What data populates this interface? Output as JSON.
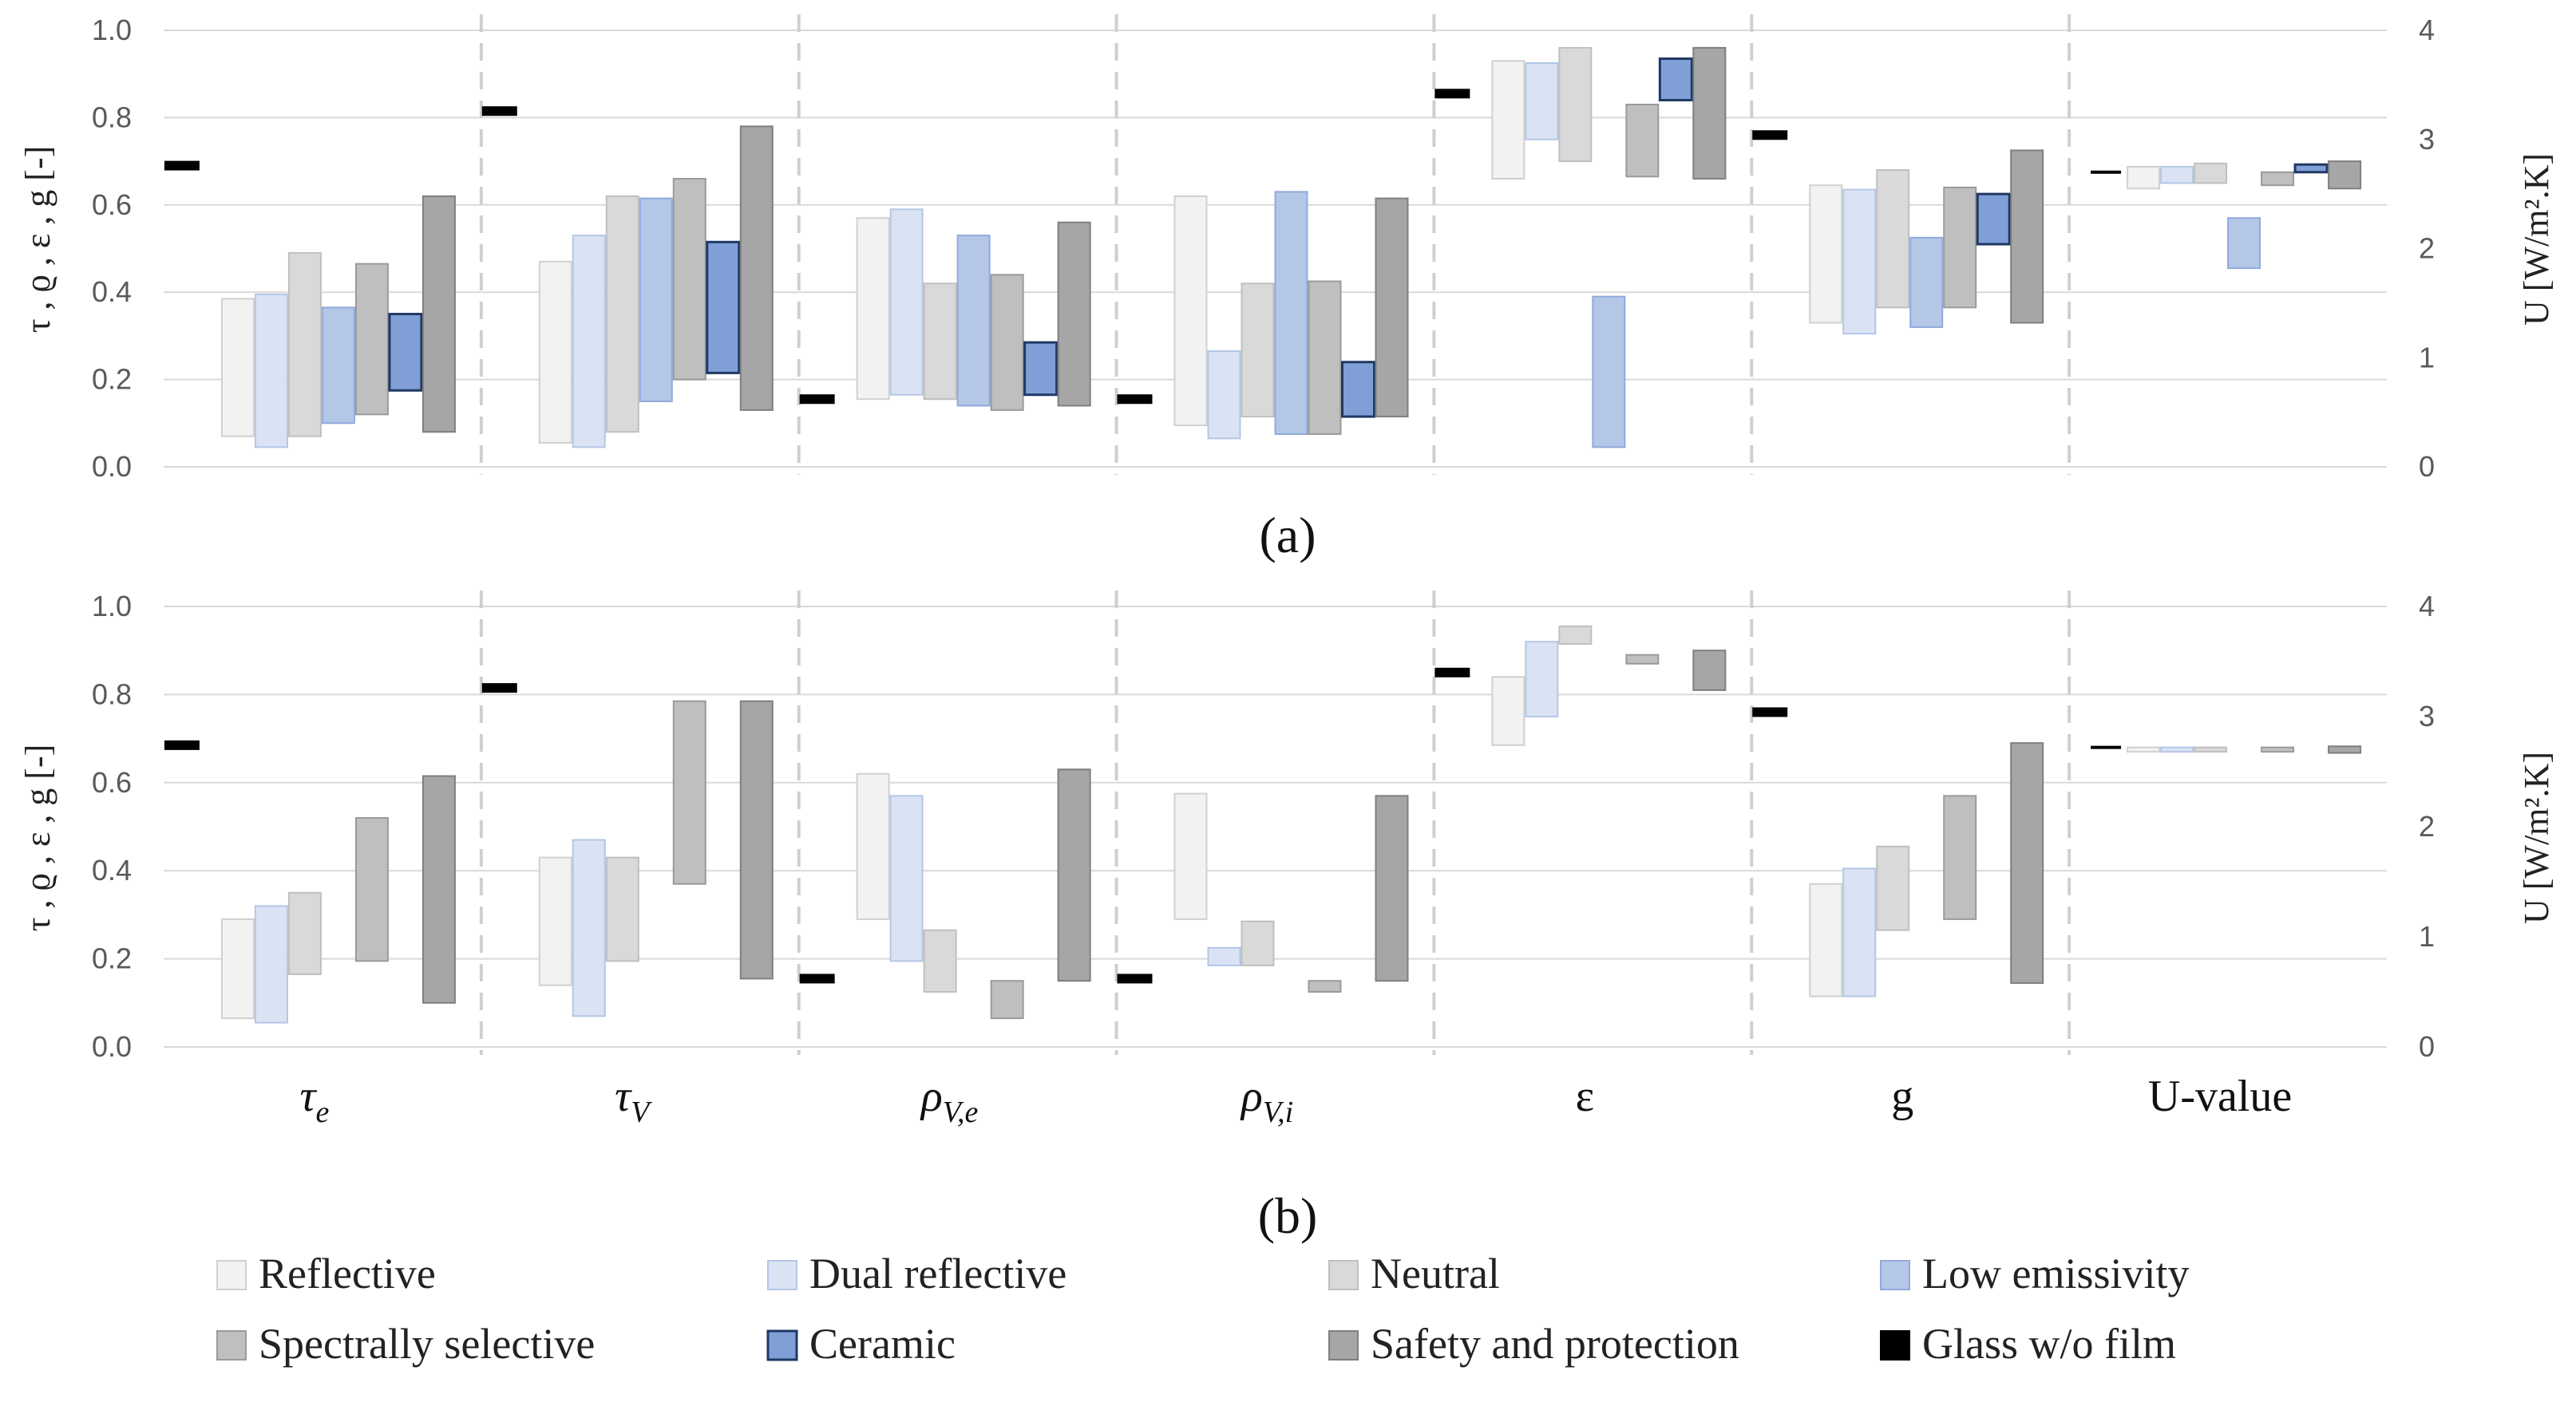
{
  "chart_data": {
    "type": "bar",
    "subtype": "floating-range",
    "y_left_label": "τ , ϱ , ε , g [-]",
    "y_right_label": "U [W/m².K]",
    "y_left_range": [
      0,
      1
    ],
    "y_right_range": [
      0,
      4
    ],
    "y_left_ticks": [
      "0.0",
      "0.2",
      "0.4",
      "0.6",
      "0.8",
      "1.0"
    ],
    "y_right_ticks_a": [
      "0",
      "1",
      "2",
      "3",
      "4"
    ],
    "y_right_ticks_b": [
      "0",
      "1",
      "2",
      "3",
      "4"
    ],
    "categories": [
      {
        "main": "τ",
        "sub": "e"
      },
      {
        "main": "τ",
        "sub": "V"
      },
      {
        "main": "ρ",
        "sub": "V,e"
      },
      {
        "main": "ρ",
        "sub": "V,i"
      },
      {
        "main": "ε",
        "sub": ""
      },
      {
        "main": "g",
        "sub": ""
      },
      {
        "main": "U-value",
        "sub": ""
      }
    ],
    "series": [
      {
        "name": "Reflective",
        "color": "#f2f2f2",
        "stroke": "#d0d0d0"
      },
      {
        "name": "Dual reflective",
        "color": "#dae3f3",
        "stroke": "#b4c7e7"
      },
      {
        "name": "Neutral",
        "color": "#d9d9d9",
        "stroke": "#bfbfbf"
      },
      {
        "name": "Low emissivity",
        "color": "#b4c7e7",
        "stroke": "#8faadc"
      },
      {
        "name": "Spectrally selective",
        "color": "#bfbfbf",
        "stroke": "#9a9a9a"
      },
      {
        "name": "Ceramic",
        "color": "#7f9fd6",
        "stroke": "#1f3864"
      },
      {
        "name": "Safety and protection",
        "color": "#a6a6a6",
        "stroke": "#7f7f7f"
      },
      {
        "name": "Glass w/o film",
        "color": "#000000",
        "stroke": "#000000"
      }
    ],
    "panels": [
      {
        "label": "(a)",
        "data": [
          [
            [
              0.07,
              0.385
            ],
            [
              0.045,
              0.395
            ],
            [
              0.07,
              0.49
            ],
            [
              0.1,
              0.365
            ],
            [
              0.12,
              0.465
            ],
            [
              0.175,
              0.35
            ],
            [
              0.08,
              0.62
            ],
            0.69
          ],
          [
            [
              0.055,
              0.47
            ],
            [
              0.045,
              0.53
            ],
            [
              0.08,
              0.62
            ],
            [
              0.15,
              0.615
            ],
            [
              0.2,
              0.66
            ],
            [
              0.215,
              0.515
            ],
            [
              0.13,
              0.78
            ],
            0.815
          ],
          [
            [
              0.155,
              0.57
            ],
            [
              0.165,
              0.59
            ],
            [
              0.155,
              0.42
            ],
            [
              0.14,
              0.53
            ],
            [
              0.13,
              0.44
            ],
            [
              0.165,
              0.285
            ],
            [
              0.14,
              0.56
            ],
            0.155
          ],
          [
            [
              0.095,
              0.62
            ],
            [
              0.065,
              0.265
            ],
            [
              0.115,
              0.42
            ],
            [
              0.075,
              0.63
            ],
            [
              0.075,
              0.425
            ],
            [
              0.115,
              0.24
            ],
            [
              0.115,
              0.615
            ],
            0.155
          ],
          [
            [
              0.66,
              0.93
            ],
            [
              0.75,
              0.925
            ],
            [
              0.7,
              0.96
            ],
            [
              0.045,
              0.39
            ],
            [
              0.665,
              0.83
            ],
            [
              0.84,
              0.935
            ],
            [
              0.66,
              0.96
            ],
            0.855
          ],
          [
            [
              0.33,
              0.645
            ],
            [
              0.305,
              0.635
            ],
            [
              0.365,
              0.68
            ],
            [
              0.32,
              0.525
            ],
            [
              0.365,
              0.64
            ],
            [
              0.51,
              0.625
            ],
            [
              0.33,
              0.725
            ],
            0.76
          ],
          [
            [
              2.55,
              2.75
            ],
            [
              2.6,
              2.75
            ],
            [
              2.6,
              2.78
            ],
            [
              1.82,
              2.28
            ],
            [
              2.58,
              2.7
            ],
            [
              2.7,
              2.77
            ],
            [
              2.55,
              2.8
            ],
            2.7
          ]
        ]
      },
      {
        "label": "(b)",
        "data": [
          [
            [
              0.065,
              0.29
            ],
            [
              0.055,
              0.32
            ],
            [
              0.165,
              0.35
            ],
            null,
            [
              0.195,
              0.52
            ],
            null,
            [
              0.1,
              0.615
            ],
            0.685
          ],
          [
            [
              0.14,
              0.43
            ],
            [
              0.07,
              0.47
            ],
            [
              0.195,
              0.43
            ],
            null,
            [
              0.37,
              0.785
            ],
            null,
            [
              0.155,
              0.785
            ],
            0.815
          ],
          [
            [
              0.29,
              0.62
            ],
            [
              0.195,
              0.57
            ],
            [
              0.125,
              0.265
            ],
            null,
            [
              0.065,
              0.15
            ],
            null,
            [
              0.15,
              0.63
            ],
            0.155
          ],
          [
            [
              0.29,
              0.575
            ],
            [
              0.185,
              0.225
            ],
            [
              0.185,
              0.285
            ],
            null,
            [
              0.125,
              0.15
            ],
            null,
            [
              0.15,
              0.57
            ],
            0.155
          ],
          [
            [
              0.685,
              0.84
            ],
            [
              0.75,
              0.92
            ],
            [
              0.915,
              0.955
            ],
            null,
            [
              0.87,
              0.89
            ],
            null,
            [
              0.81,
              0.9
            ],
            0.85
          ],
          [
            [
              0.115,
              0.37
            ],
            [
              0.115,
              0.405
            ],
            [
              0.265,
              0.455
            ],
            null,
            [
              0.29,
              0.57
            ],
            null,
            [
              0.145,
              0.69
            ],
            0.76
          ],
          [
            [
              2.68,
              2.72
            ],
            [
              2.68,
              2.72
            ],
            [
              2.68,
              2.72
            ],
            null,
            [
              2.68,
              2.72
            ],
            null,
            [
              2.67,
              2.73
            ],
            2.72
          ]
        ]
      }
    ],
    "legend": {
      "placement": "bottom",
      "columns": 4
    }
  }
}
